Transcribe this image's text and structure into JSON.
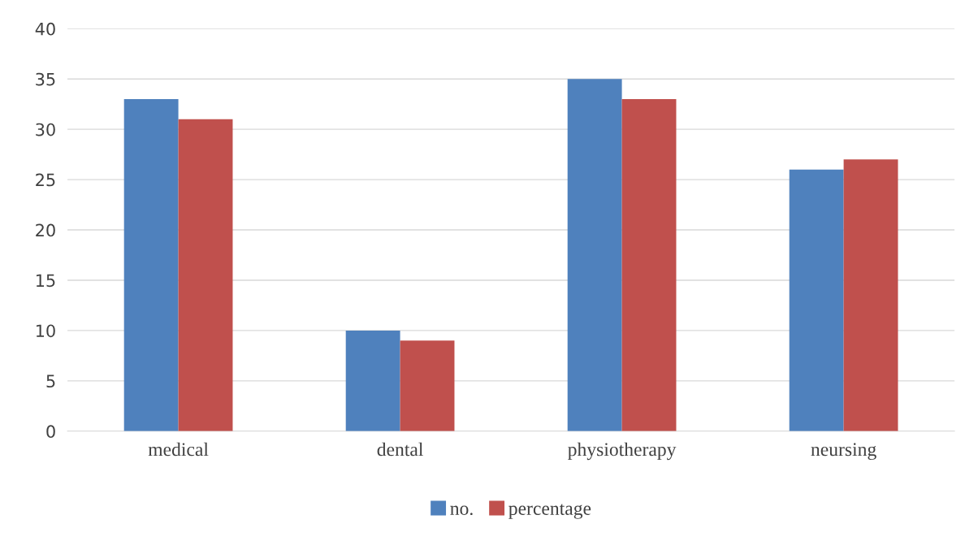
{
  "chart_data": {
    "type": "bar",
    "categories": [
      "medical",
      "dental",
      "physiotherapy",
      "neursing"
    ],
    "series": [
      {
        "name": "no.",
        "color": "#4f81bd",
        "values": [
          33,
          10,
          35,
          26
        ]
      },
      {
        "name": "percentage",
        "color": "#c0504d",
        "values": [
          31,
          9,
          33,
          27
        ]
      }
    ],
    "ylim": [
      0,
      40
    ],
    "yticks": [
      0,
      5,
      10,
      15,
      20,
      25,
      30,
      35,
      40
    ],
    "grid": "y",
    "legend": "bottom"
  }
}
